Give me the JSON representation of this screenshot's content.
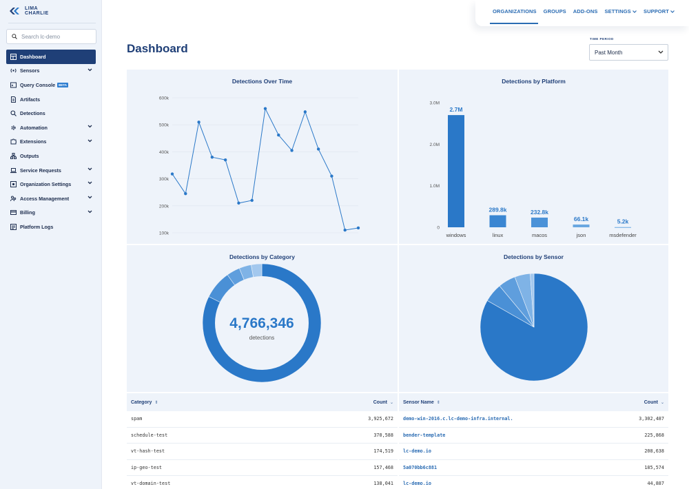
{
  "brand": {
    "line1": "LIMA",
    "line2": "CHARLIE"
  },
  "search": {
    "placeholder": "Search lc-demo"
  },
  "sidebar": {
    "items": [
      {
        "label": "Dashboard",
        "icon": "dashboard-icon",
        "active": true,
        "expandable": false
      },
      {
        "label": "Sensors",
        "icon": "sensor-icon",
        "active": false,
        "expandable": true
      },
      {
        "label": "Query Console",
        "icon": "console-icon",
        "active": false,
        "expandable": false,
        "badge": "BETA"
      },
      {
        "label": "Artifacts",
        "icon": "file-icon",
        "active": false,
        "expandable": false
      },
      {
        "label": "Detections",
        "icon": "search-icon",
        "active": false,
        "expandable": false
      },
      {
        "label": "Automation",
        "icon": "gear-icon",
        "active": false,
        "expandable": true
      },
      {
        "label": "Extensions",
        "icon": "puzzle-icon",
        "active": false,
        "expandable": true
      },
      {
        "label": "Outputs",
        "icon": "network-icon",
        "active": false,
        "expandable": false
      },
      {
        "label": "Service Requests",
        "icon": "laptop-icon",
        "active": false,
        "expandable": true
      },
      {
        "label": "Organization Settings",
        "icon": "settings-icon",
        "active": false,
        "expandable": true
      },
      {
        "label": "Access Management",
        "icon": "users-icon",
        "active": false,
        "expandable": true
      },
      {
        "label": "Billing",
        "icon": "card-icon",
        "active": false,
        "expandable": true
      },
      {
        "label": "Platform Logs",
        "icon": "logs-icon",
        "active": false,
        "expandable": false
      }
    ]
  },
  "topnav": {
    "organizations": "ORGANIZATIONS",
    "groups": "GROUPS",
    "addons": "ADD-ONS",
    "settings": "SETTINGS",
    "support": "SUPPORT"
  },
  "header": {
    "title": "Dashboard",
    "time_period_label": "TIME PERIOD",
    "time_period_value": "Past Month"
  },
  "panels": {
    "over_time": "Detections Over Time",
    "by_platform": "Detections by Platform",
    "by_category": "Detections by Category",
    "by_sensor": "Detections by Sensor"
  },
  "donut": {
    "total": "4,766,346",
    "caption": "detections"
  },
  "colors": {
    "primary": "#2a78c8",
    "navy": "#1f3f77",
    "panel": "#eef3fa"
  },
  "chart_data": [
    {
      "type": "line",
      "title": "Detections Over Time",
      "ylim": [
        100000,
        600000
      ],
      "yticks": [
        "100k",
        "200k",
        "300k",
        "400k",
        "500k",
        "600k"
      ],
      "values": [
        318000,
        245000,
        510000,
        380000,
        370000,
        210000,
        220000,
        560000,
        462000,
        405000,
        548000,
        410000,
        310000,
        110000,
        118000
      ]
    },
    {
      "type": "bar",
      "title": "Detections by Platform",
      "ylim": [
        0,
        3000000
      ],
      "yticks": [
        "0",
        "1.0M",
        "2.0M",
        "3.0M"
      ],
      "categories": [
        "windows",
        "linux",
        "macos",
        "json",
        "msdefender"
      ],
      "values": [
        2700000,
        289800,
        232800,
        66100,
        5200
      ],
      "labels": [
        "2.7M",
        "289.8k",
        "232.8k",
        "66.1k",
        "5.2k"
      ]
    },
    {
      "type": "pie",
      "title": "Detections by Category",
      "donut": true,
      "values": [
        3925672,
        370588,
        174519,
        157468,
        138041
      ]
    },
    {
      "type": "pie",
      "title": "Detections by Sensor",
      "donut": false,
      "values": [
        3302487,
        225868,
        208638,
        185574,
        44887
      ]
    }
  ],
  "category_table": {
    "headers": {
      "name": "Category",
      "count": "Count"
    },
    "rows": [
      {
        "name": "spam",
        "count": "3,925,672"
      },
      {
        "name": "schedule-test",
        "count": "370,588"
      },
      {
        "name": "vt-hash-test",
        "count": "174,519"
      },
      {
        "name": "ip-geo-test",
        "count": "157,468"
      },
      {
        "name": "vt-domain-test",
        "count": "138,041"
      }
    ]
  },
  "sensor_table": {
    "headers": {
      "name": "Sensor Name",
      "count": "Count"
    },
    "rows": [
      {
        "name": "demo-win-2016.c.lc-demo-infra.internal.",
        "count": "3,302,487"
      },
      {
        "name": "bender-template",
        "count": "225,868"
      },
      {
        "name": "lc-demo.io",
        "count": "208,638"
      },
      {
        "name": "5a070bb6c881",
        "count": "185,574"
      },
      {
        "name": "lc-demo.io",
        "count": "44,887"
      }
    ]
  }
}
